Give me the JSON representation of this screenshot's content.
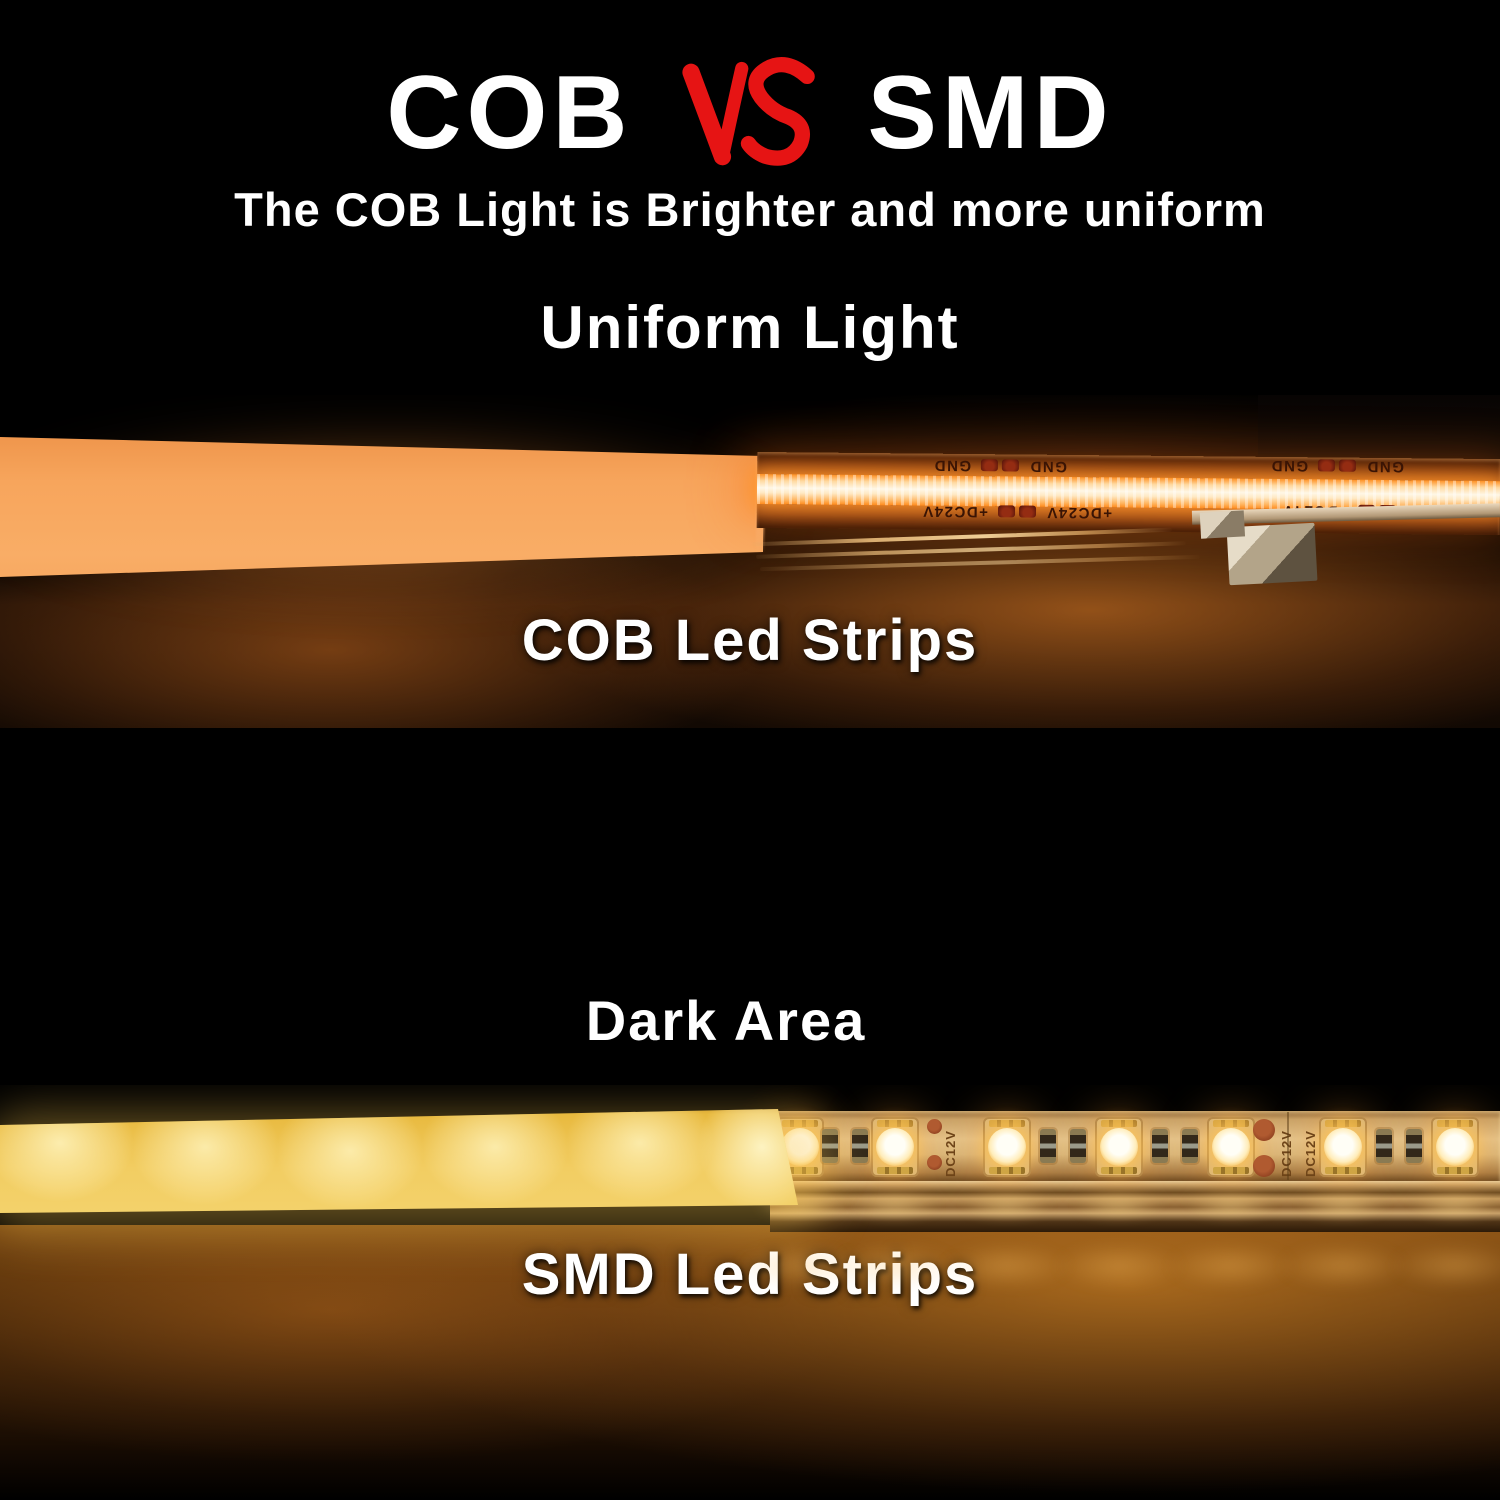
{
  "colors": {
    "background": "#000000",
    "text": "#ffffff",
    "vs_red": "#e61414",
    "cob_diffuser_glow": "#f8a75f",
    "cob_core": "#fff6e2",
    "smd_diffuser_glow": "#eec258",
    "smd_led_core": "#fffdf2"
  },
  "header": {
    "title_left": "COB",
    "vs_label": "VS",
    "title_right": "SMD",
    "subtitle": "The COB Light is Brighter and more uniform"
  },
  "cob_panel": {
    "heading": "Uniform Light",
    "caption": "COB Led Strips",
    "pcb_label_gnd": "GND",
    "pcb_label_power": "+DC24V"
  },
  "middle_panel": {
    "label": "Dark Area"
  },
  "smd_panel": {
    "caption": "SMD Led Strips",
    "pcb_label_power": "DC12V",
    "led_count": 7
  }
}
